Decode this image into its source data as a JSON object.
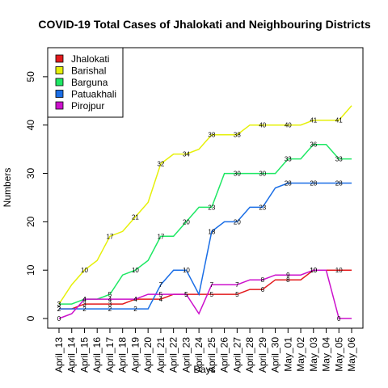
{
  "chart_data": {
    "type": "line",
    "title": "COVID-19 Total Cases of Jhalokati and Neighbouring Districts",
    "xlabel": "Days",
    "ylabel": "Numbers",
    "ylim": [
      -2,
      56
    ],
    "yticks": [
      0,
      10,
      20,
      30,
      40,
      50
    ],
    "grid": false,
    "legend_position": "top-left",
    "categories": [
      "April_13",
      "April_14",
      "April_15",
      "April_16",
      "April_17",
      "April_18",
      "April_19",
      "April_20",
      "April_21",
      "April_22",
      "April_23",
      "April_24",
      "April_25",
      "April_26",
      "April_27",
      "April_28",
      "April_29",
      "April_30",
      "May_01",
      "May_02",
      "May_03",
      "May_04",
      "May_05",
      "May_06"
    ],
    "series": [
      {
        "name": "Jhalokati",
        "color": "#e31a1c",
        "values": [
          2,
          2,
          3,
          3,
          3,
          3,
          4,
          4,
          4,
          5,
          5,
          5,
          5,
          5,
          5,
          6,
          6,
          8,
          8,
          8,
          10,
          10,
          10,
          10
        ]
      },
      {
        "name": "Barishal",
        "color": "#e6f00a",
        "values": [
          3,
          7,
          10,
          12,
          17,
          18,
          21,
          24,
          32,
          34,
          34,
          35,
          38,
          38,
          38,
          40,
          40,
          40,
          40,
          40,
          41,
          41,
          41,
          44
        ]
      },
      {
        "name": "Barguna",
        "color": "#1ee864",
        "values": [
          3,
          3,
          4,
          4,
          5,
          9,
          10,
          12,
          17,
          17,
          20,
          23,
          23,
          30,
          30,
          30,
          30,
          30,
          33,
          33,
          36,
          36,
          33,
          33
        ]
      },
      {
        "name": "Patuakhali",
        "color": "#1a6ee6",
        "values": [
          2,
          2,
          2,
          2,
          2,
          2,
          2,
          2,
          7,
          10,
          10,
          5,
          18,
          20,
          20,
          23,
          23,
          27,
          28,
          28,
          28,
          28,
          28,
          28
        ]
      },
      {
        "name": "Pirojpur",
        "color": "#cc11cc",
        "values": [
          0,
          1,
          4,
          4,
          4,
          4,
          4,
          5,
          5,
          5,
          5,
          1,
          7,
          7,
          7,
          8,
          8,
          9,
          9,
          9,
          10,
          10,
          0,
          0
        ]
      }
    ],
    "data_labels": [
      {
        "series": 0,
        "index": 0,
        "text": "2"
      },
      {
        "series": 0,
        "index": 2,
        "text": "3"
      },
      {
        "series": 0,
        "index": 4,
        "text": "3"
      },
      {
        "series": 0,
        "index": 6,
        "text": "4"
      },
      {
        "series": 0,
        "index": 8,
        "text": "4"
      },
      {
        "series": 0,
        "index": 10,
        "text": "5"
      },
      {
        "series": 0,
        "index": 12,
        "text": "5"
      },
      {
        "series": 0,
        "index": 14,
        "text": "5"
      },
      {
        "series": 0,
        "index": 16,
        "text": "6"
      },
      {
        "series": 0,
        "index": 18,
        "text": "8"
      },
      {
        "series": 0,
        "index": 20,
        "text": "10"
      },
      {
        "series": 0,
        "index": 22,
        "text": "10"
      },
      {
        "series": 1,
        "index": 0,
        "text": "3"
      },
      {
        "series": 1,
        "index": 2,
        "text": "10"
      },
      {
        "series": 1,
        "index": 4,
        "text": "17"
      },
      {
        "series": 1,
        "index": 6,
        "text": "21"
      },
      {
        "series": 1,
        "index": 8,
        "text": "32"
      },
      {
        "series": 1,
        "index": 10,
        "text": "34"
      },
      {
        "series": 1,
        "index": 12,
        "text": "38"
      },
      {
        "series": 1,
        "index": 14,
        "text": "38"
      },
      {
        "series": 1,
        "index": 16,
        "text": "40"
      },
      {
        "series": 1,
        "index": 18,
        "text": "40"
      },
      {
        "series": 1,
        "index": 20,
        "text": "41"
      },
      {
        "series": 1,
        "index": 22,
        "text": "41"
      },
      {
        "series": 2,
        "index": 0,
        "text": "3"
      },
      {
        "series": 2,
        "index": 2,
        "text": "4"
      },
      {
        "series": 2,
        "index": 4,
        "text": "5"
      },
      {
        "series": 2,
        "index": 6,
        "text": "10"
      },
      {
        "series": 2,
        "index": 8,
        "text": "17"
      },
      {
        "series": 2,
        "index": 10,
        "text": "20"
      },
      {
        "series": 2,
        "index": 12,
        "text": "23"
      },
      {
        "series": 2,
        "index": 14,
        "text": "30"
      },
      {
        "series": 2,
        "index": 16,
        "text": "30"
      },
      {
        "series": 2,
        "index": 18,
        "text": "33"
      },
      {
        "series": 2,
        "index": 20,
        "text": "36"
      },
      {
        "series": 2,
        "index": 22,
        "text": "33"
      },
      {
        "series": 3,
        "index": 0,
        "text": "2"
      },
      {
        "series": 3,
        "index": 2,
        "text": "2"
      },
      {
        "series": 3,
        "index": 4,
        "text": "2"
      },
      {
        "series": 3,
        "index": 6,
        "text": "2"
      },
      {
        "series": 3,
        "index": 8,
        "text": "7"
      },
      {
        "series": 3,
        "index": 10,
        "text": "10"
      },
      {
        "series": 3,
        "index": 12,
        "text": "18"
      },
      {
        "series": 3,
        "index": 14,
        "text": "20"
      },
      {
        "series": 3,
        "index": 16,
        "text": "23"
      },
      {
        "series": 3,
        "index": 18,
        "text": "28"
      },
      {
        "series": 3,
        "index": 20,
        "text": "28"
      },
      {
        "series": 3,
        "index": 22,
        "text": "28"
      },
      {
        "series": 4,
        "index": 0,
        "text": "0"
      },
      {
        "series": 4,
        "index": 2,
        "text": "4"
      },
      {
        "series": 4,
        "index": 4,
        "text": "4"
      },
      {
        "series": 4,
        "index": 6,
        "text": "4"
      },
      {
        "series": 4,
        "index": 8,
        "text": "5"
      },
      {
        "series": 4,
        "index": 10,
        "text": "5"
      },
      {
        "series": 4,
        "index": 12,
        "text": "7"
      },
      {
        "series": 4,
        "index": 14,
        "text": "7"
      },
      {
        "series": 4,
        "index": 16,
        "text": "8"
      },
      {
        "series": 4,
        "index": 18,
        "text": "9"
      },
      {
        "series": 4,
        "index": 20,
        "text": "10"
      },
      {
        "series": 4,
        "index": 22,
        "text": "0"
      }
    ]
  }
}
